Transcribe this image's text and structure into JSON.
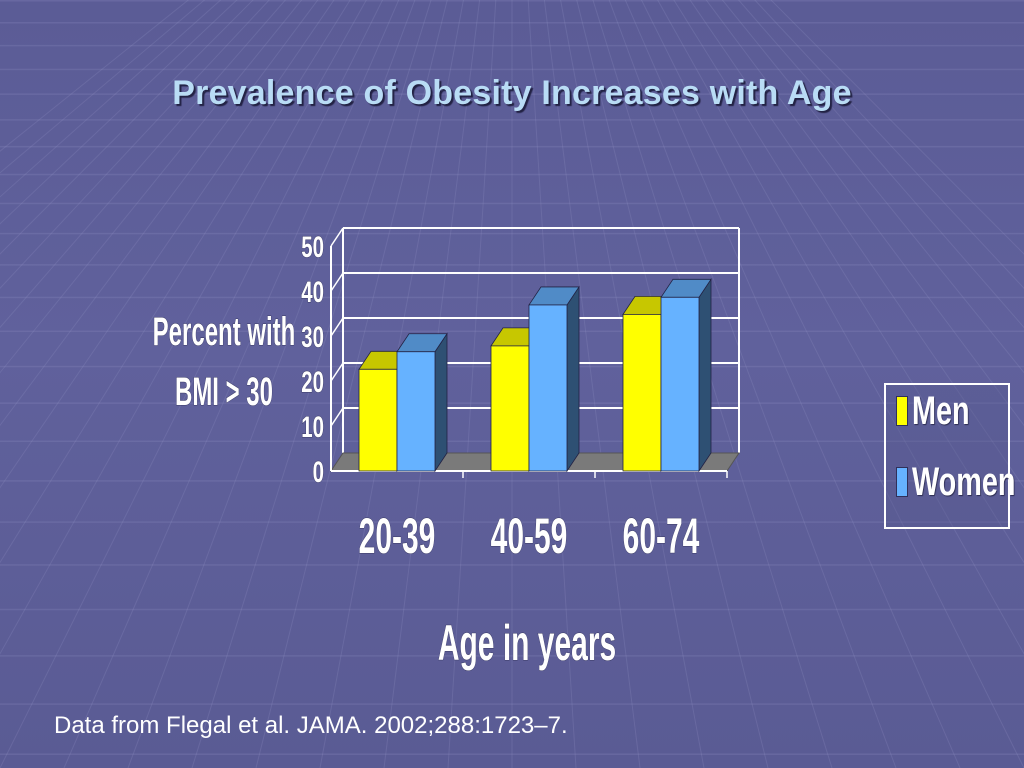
{
  "title": "Prevalence of Obesity Increases with Age",
  "footnote": "Data from Flegal et al. JAMA. 2002;288:1723–7.",
  "colors": {
    "background": "#5e5f99",
    "title": "#b9dcf5",
    "men": "#ffff00",
    "women": "#66b2ff",
    "floor": "#7a7a7a"
  },
  "chart_data": {
    "type": "bar",
    "style": "3d-clustered-column",
    "categories": [
      "20-39",
      "40-59",
      "60-74"
    ],
    "series": [
      {
        "name": "Men",
        "values": [
          22.6,
          27.8,
          34.8
        ],
        "color": "#ffff00"
      },
      {
        "name": "Women",
        "values": [
          26.5,
          36.9,
          38.6
        ],
        "color": "#66b2ff"
      }
    ],
    "ylabel_lines": [
      "Percent with",
      "BMI >  30"
    ],
    "xlabel": "Age in years",
    "ylim": [
      0,
      50
    ],
    "yticks": [
      "0",
      "10",
      "20",
      "30",
      "40",
      "50"
    ],
    "legend_position": "right",
    "grid": true
  }
}
